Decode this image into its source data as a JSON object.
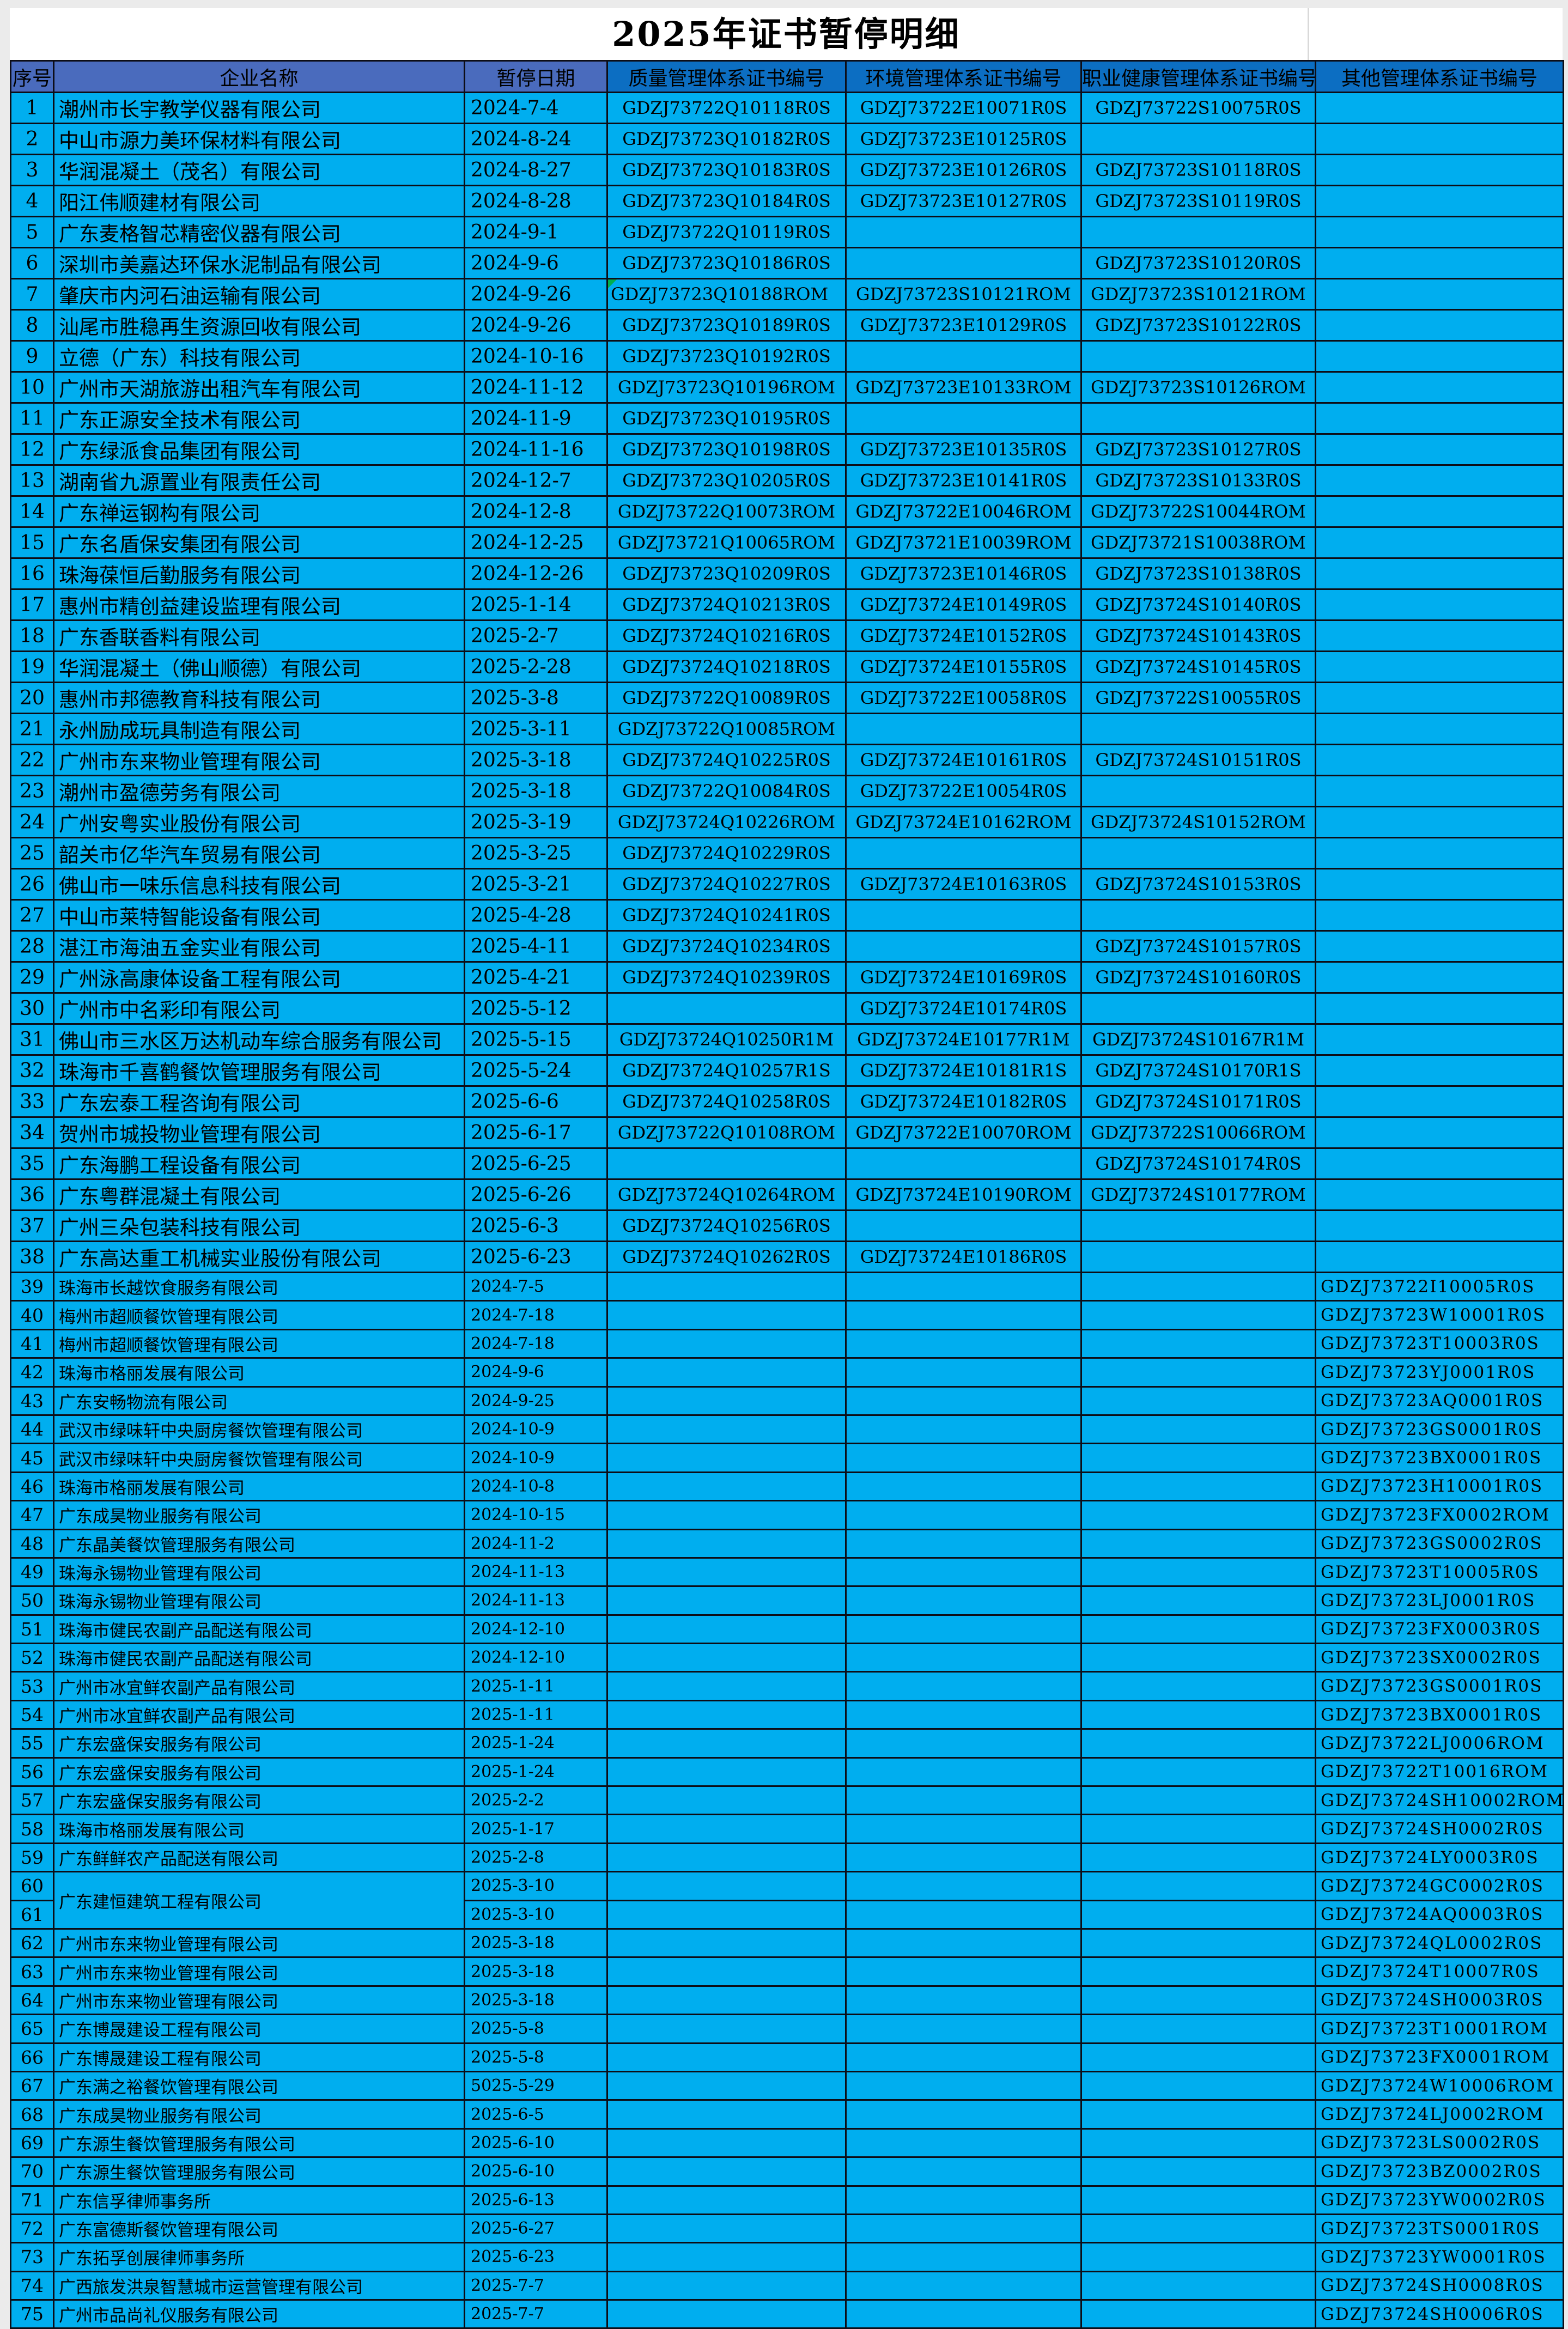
{
  "title": "2025年证书暂停明细",
  "colors": {
    "header_left_blue": "#4a6bbd",
    "header_right_blue": "#0c6ec2",
    "cell_cyan": "#00aeef",
    "grid_border": "#0d0d16",
    "error_marker_green": "#00b050"
  },
  "table": {
    "headers": {
      "serial": "序号",
      "company": "企业名称",
      "date": "暂停日期",
      "quality": "质量管理体系证书编号",
      "env": "环境管理体系证书编号",
      "health": "职业健康管理体系证书编号",
      "other": "其他管理体系证书编号"
    },
    "small_rows_from": 39,
    "rows": [
      {
        "n": "1",
        "company": "潮州市长宇教学仪器有限公司",
        "date": "2024-7-4",
        "q": "GDZJ73722Q10118R0S",
        "e": "GDZJ73722E10071R0S",
        "h": "GDZJ73722S10075R0S",
        "o": ""
      },
      {
        "n": "2",
        "company": "中山市源力美环保材料有限公司",
        "date": "2024-8-24",
        "q": "GDZJ73723Q10182R0S",
        "e": "GDZJ73723E10125R0S",
        "h": "",
        "o": ""
      },
      {
        "n": "3",
        "company": "华润混凝土（茂名）有限公司",
        "date": "2024-8-27",
        "q": "GDZJ73723Q10183R0S",
        "e": "GDZJ73723E10126R0S",
        "h": "GDZJ73723S10118R0S",
        "o": ""
      },
      {
        "n": "4",
        "company": "阳江伟顺建材有限公司",
        "date": "2024-8-28",
        "q": "GDZJ73723Q10184R0S",
        "e": "GDZJ73723E10127R0S",
        "h": "GDZJ73723S10119R0S",
        "o": ""
      },
      {
        "n": "5",
        "company": "广东麦格智芯精密仪器有限公司",
        "date": "2024-9-1",
        "q": "GDZJ73722Q10119R0S",
        "e": "",
        "h": "",
        "o": ""
      },
      {
        "n": "6",
        "company": "深圳市美嘉达环保水泥制品有限公司",
        "date": "2024-9-6",
        "q": "GDZJ73723Q10186R0S",
        "e": "",
        "h": "GDZJ73723S10120R0S",
        "o": ""
      },
      {
        "n": "7",
        "company": "肇庆市内河石油运输有限公司",
        "date": "2024-9-26",
        "q": "GDZJ73723Q10188ROM",
        "e": "GDZJ73723S10121ROM",
        "h": "GDZJ73723S10121ROM",
        "o": "",
        "q_left": true,
        "q_marker": true
      },
      {
        "n": "8",
        "company": "汕尾市胜稳再生资源回收有限公司",
        "date": "2024-9-26",
        "q": "GDZJ73723Q10189R0S",
        "e": "GDZJ73723E10129R0S",
        "h": "GDZJ73723S10122R0S",
        "o": ""
      },
      {
        "n": "9",
        "company": "立德（广东）科技有限公司",
        "date": "2024-10-16",
        "q": "GDZJ73723Q10192R0S",
        "e": "",
        "h": "",
        "o": ""
      },
      {
        "n": "10",
        "company": "广州市天湖旅游出租汽车有限公司",
        "date": "2024-11-12",
        "q": "GDZJ73723Q10196ROM",
        "e": "GDZJ73723E10133ROM",
        "h": "GDZJ73723S10126ROM",
        "o": ""
      },
      {
        "n": "11",
        "company": "广东正源安全技术有限公司",
        "date": "2024-11-9",
        "q": "GDZJ73723Q10195R0S",
        "e": "",
        "h": "",
        "o": ""
      },
      {
        "n": "12",
        "company": "广东绿派食品集团有限公司",
        "date": "2024-11-16",
        "q": "GDZJ73723Q10198R0S",
        "e": "GDZJ73723E10135R0S",
        "h": "GDZJ73723S10127R0S",
        "o": ""
      },
      {
        "n": "13",
        "company": "湖南省九源置业有限责任公司",
        "date": "2024-12-7",
        "q": "GDZJ73723Q10205R0S",
        "e": "GDZJ73723E10141R0S",
        "h": "GDZJ73723S10133R0S",
        "o": ""
      },
      {
        "n": "14",
        "company": "广东禅运钢构有限公司",
        "date": "2024-12-8",
        "q": "GDZJ73722Q10073ROM",
        "e": "GDZJ73722E10046ROM",
        "h": "GDZJ73722S10044ROM",
        "o": ""
      },
      {
        "n": "15",
        "company": "广东名盾保安集团有限公司",
        "date": "2024-12-25",
        "q": "GDZJ73721Q10065ROM",
        "e": "GDZJ73721E10039ROM",
        "h": "GDZJ73721S10038ROM",
        "o": ""
      },
      {
        "n": "16",
        "company": "珠海葆恒后勤服务有限公司",
        "date": "2024-12-26",
        "q": "GDZJ73723Q10209R0S",
        "e": "GDZJ73723E10146R0S",
        "h": "GDZJ73723S10138R0S",
        "o": ""
      },
      {
        "n": "17",
        "company": "惠州市精创益建设监理有限公司",
        "date": "2025-1-14",
        "q": "GDZJ73724Q10213R0S",
        "e": "GDZJ73724E10149R0S",
        "h": "GDZJ73724S10140R0S",
        "o": ""
      },
      {
        "n": "18",
        "company": "广东香联香料有限公司",
        "date": "2025-2-7",
        "q": "GDZJ73724Q10216R0S",
        "e": "GDZJ73724E10152R0S",
        "h": "GDZJ73724S10143R0S",
        "o": ""
      },
      {
        "n": "19",
        "company": "华润混凝土（佛山顺德）有限公司",
        "date": "2025-2-28",
        "q": "GDZJ73724Q10218R0S",
        "e": "GDZJ73724E10155R0S",
        "h": "GDZJ73724S10145R0S",
        "o": ""
      },
      {
        "n": "20",
        "company": "惠州市邦德教育科技有限公司",
        "date": "2025-3-8",
        "q": "GDZJ73722Q10089R0S",
        "e": "GDZJ73722E10058R0S",
        "h": "GDZJ73722S10055R0S",
        "o": ""
      },
      {
        "n": "21",
        "company": "永州励成玩具制造有限公司",
        "date": "2025-3-11",
        "q": "GDZJ73722Q10085ROM",
        "e": "",
        "h": "",
        "o": ""
      },
      {
        "n": "22",
        "company": "广州市东来物业管理有限公司",
        "date": "2025-3-18",
        "q": "GDZJ73724Q10225R0S",
        "e": "GDZJ73724E10161R0S",
        "h": "GDZJ73724S10151R0S",
        "o": ""
      },
      {
        "n": "23",
        "company": "潮州市盈德劳务有限公司",
        "date": "2025-3-18",
        "q": "GDZJ73722Q10084R0S",
        "e": "GDZJ73722E10054R0S",
        "h": "",
        "o": ""
      },
      {
        "n": "24",
        "company": "广州安粤实业股份有限公司",
        "date": "2025-3-19",
        "q": "GDZJ73724Q10226ROM",
        "e": "GDZJ73724E10162ROM",
        "h": "GDZJ73724S10152ROM",
        "o": ""
      },
      {
        "n": "25",
        "company": "韶关市亿华汽车贸易有限公司",
        "date": "2025-3-25",
        "q": "GDZJ73724Q10229R0S",
        "e": "",
        "h": "",
        "o": ""
      },
      {
        "n": "26",
        "company": "佛山市一味乐信息科技有限公司",
        "date": "2025-3-21",
        "q": "GDZJ73724Q10227R0S",
        "e": "GDZJ73724E10163R0S",
        "h": "GDZJ73724S10153R0S",
        "o": ""
      },
      {
        "n": "27",
        "company": "中山市莱特智能设备有限公司",
        "date": "2025-4-28",
        "q": "GDZJ73724Q10241R0S",
        "e": "",
        "h": "",
        "o": ""
      },
      {
        "n": "28",
        "company": "湛江市海油五金实业有限公司",
        "date": "2025-4-11",
        "q": "GDZJ73724Q10234R0S",
        "e": "",
        "h": "GDZJ73724S10157R0S",
        "o": ""
      },
      {
        "n": "29",
        "company": "广州泳高康体设备工程有限公司",
        "date": "2025-4-21",
        "q": "GDZJ73724Q10239R0S",
        "e": "GDZJ73724E10169R0S",
        "h": "GDZJ73724S10160R0S",
        "o": ""
      },
      {
        "n": "30",
        "company": "广州市中名彩印有限公司",
        "date": "2025-5-12",
        "q": "",
        "e": "GDZJ73724E10174R0S",
        "h": "",
        "o": ""
      },
      {
        "n": "31",
        "company": "佛山市三水区万达机动车综合服务有限公司",
        "date": "2025-5-15",
        "q": "GDZJ73724Q10250R1M",
        "e": "GDZJ73724E10177R1M",
        "h": "GDZJ73724S10167R1M",
        "o": ""
      },
      {
        "n": "32",
        "company": "珠海市千喜鹤餐饮管理服务有限公司",
        "date": "2025-5-24",
        "q": "GDZJ73724Q10257R1S",
        "e": "GDZJ73724E10181R1S",
        "h": "GDZJ73724S10170R1S",
        "o": ""
      },
      {
        "n": "33",
        "company": "广东宏泰工程咨询有限公司",
        "date": "2025-6-6",
        "q": "GDZJ73724Q10258R0S",
        "e": "GDZJ73724E10182R0S",
        "h": "GDZJ73724S10171R0S",
        "o": ""
      },
      {
        "n": "34",
        "company": "贺州市城投物业管理有限公司",
        "date": "2025-6-17",
        "q": "GDZJ73722Q10108ROM",
        "e": "GDZJ73722E10070ROM",
        "h": "GDZJ73722S10066ROM",
        "o": ""
      },
      {
        "n": "35",
        "company": "广东海鹏工程设备有限公司",
        "date": "2025-6-25",
        "q": "",
        "e": "",
        "h": "GDZJ73724S10174R0S",
        "o": ""
      },
      {
        "n": "36",
        "company": "广东粤群混凝土有限公司",
        "date": "2025-6-26",
        "q": "GDZJ73724Q10264ROM",
        "e": "GDZJ73724E10190ROM",
        "h": "GDZJ73724S10177ROM",
        "o": ""
      },
      {
        "n": "37",
        "company": "广州三朵包装科技有限公司",
        "date": "2025-6-3",
        "q": "GDZJ73724Q10256R0S",
        "e": "",
        "h": "",
        "o": ""
      },
      {
        "n": "38",
        "company": "广东高达重工机械实业股份有限公司",
        "date": "2025-6-23",
        "q": "GDZJ73724Q10262R0S",
        "e": "GDZJ73724E10186R0S",
        "h": "",
        "o": ""
      },
      {
        "n": "39",
        "company": "珠海市长越饮食服务有限公司",
        "date": "2024-7-5",
        "q": "",
        "e": "",
        "h": "",
        "o": "GDZJ73722I10005R0S"
      },
      {
        "n": "40",
        "company": "梅州市超顺餐饮管理有限公司",
        "date": "2024-7-18",
        "q": "",
        "e": "",
        "h": "",
        "o": "GDZJ73723W10001R0S"
      },
      {
        "n": "41",
        "company": "梅州市超顺餐饮管理有限公司",
        "date": "2024-7-18",
        "q": "",
        "e": "",
        "h": "",
        "o": "GDZJ73723T10003R0S"
      },
      {
        "n": "42",
        "company": "珠海市格丽发展有限公司",
        "date": "2024-9-6",
        "q": "",
        "e": "",
        "h": "",
        "o": "GDZJ73723YJ0001R0S"
      },
      {
        "n": "43",
        "company": "广东安畅物流有限公司",
        "date": "2024-9-25",
        "q": "",
        "e": "",
        "h": "",
        "o": "GDZJ73723AQ0001R0S"
      },
      {
        "n": "44",
        "company": "武汉市绿味轩中央厨房餐饮管理有限公司",
        "date": "2024-10-9",
        "q": "",
        "e": "",
        "h": "",
        "o": "GDZJ73723GS0001R0S"
      },
      {
        "n": "45",
        "company": "武汉市绿味轩中央厨房餐饮管理有限公司",
        "date": "2024-10-9",
        "q": "",
        "e": "",
        "h": "",
        "o": "GDZJ73723BX0001R0S"
      },
      {
        "n": "46",
        "company": "珠海市格丽发展有限公司",
        "date": "2024-10-8",
        "q": "",
        "e": "",
        "h": "",
        "o": "GDZJ73723H10001R0S"
      },
      {
        "n": "47",
        "company": "广东成昊物业服务有限公司",
        "date": "2024-10-15",
        "q": "",
        "e": "",
        "h": "",
        "o": "GDZJ73723FX0002ROM"
      },
      {
        "n": "48",
        "company": "广东晶美餐饮管理服务有限公司",
        "date": "2024-11-2",
        "q": "",
        "e": "",
        "h": "",
        "o": "GDZJ73723GS0002R0S"
      },
      {
        "n": "49",
        "company": "珠海永锡物业管理有限公司",
        "date": "2024-11-13",
        "q": "",
        "e": "",
        "h": "",
        "o": "GDZJ73723T10005R0S"
      },
      {
        "n": "50",
        "company": "珠海永锡物业管理有限公司",
        "date": "2024-11-13",
        "q": "",
        "e": "",
        "h": "",
        "o": "GDZJ73723LJ0001R0S"
      },
      {
        "n": "51",
        "company": "珠海市健民农副产品配送有限公司",
        "date": "2024-12-10",
        "q": "",
        "e": "",
        "h": "",
        "o": "GDZJ73723FX0003R0S"
      },
      {
        "n": "52",
        "company": "珠海市健民农副产品配送有限公司",
        "date": "2024-12-10",
        "q": "",
        "e": "",
        "h": "",
        "o": "GDZJ73723SX0002R0S"
      },
      {
        "n": "53",
        "company": "广州市冰宜鲜农副产品有限公司",
        "date": "2025-1-11",
        "q": "",
        "e": "",
        "h": "",
        "o": "GDZJ73723GS0001R0S"
      },
      {
        "n": "54",
        "company": "广州市冰宜鲜农副产品有限公司",
        "date": "2025-1-11",
        "q": "",
        "e": "",
        "h": "",
        "o": "GDZJ73723BX0001R0S"
      },
      {
        "n": "55",
        "company": "广东宏盛保安服务有限公司",
        "date": "2025-1-24",
        "q": "",
        "e": "",
        "h": "",
        "o": "GDZJ73722LJ0006ROM"
      },
      {
        "n": "56",
        "company": "广东宏盛保安服务有限公司",
        "date": "2025-1-24",
        "q": "",
        "e": "",
        "h": "",
        "o": "GDZJ73722T10016ROM"
      },
      {
        "n": "57",
        "company": "广东宏盛保安服务有限公司",
        "date": "2025-2-2",
        "q": "",
        "e": "",
        "h": "",
        "o": "GDZJ73724SH10002ROM"
      },
      {
        "n": "58",
        "company": "珠海市格丽发展有限公司",
        "date": "2025-1-17",
        "q": "",
        "e": "",
        "h": "",
        "o": "GDZJ73724SH0002R0S"
      },
      {
        "n": "59",
        "company": "广东鲜鲜农产品配送有限公司",
        "date": "2025-2-8",
        "q": "",
        "e": "",
        "h": "",
        "o": "GDZJ73724LY0003R0S"
      },
      {
        "n": "60",
        "company": "广东建恒建筑工程有限公司",
        "date": "2025-3-10",
        "q": "",
        "e": "",
        "h": "",
        "o": "GDZJ73724GC0002R0S",
        "company_rowspan": 2
      },
      {
        "n": "61",
        "company": "",
        "date": "2025-3-10",
        "q": "",
        "e": "",
        "h": "",
        "o": "GDZJ73724AQ0003R0S",
        "company_rowspan": 0
      },
      {
        "n": "62",
        "company": "广州市东来物业管理有限公司",
        "date": "2025-3-18",
        "q": "",
        "e": "",
        "h": "",
        "o": "GDZJ73724QL0002R0S"
      },
      {
        "n": "63",
        "company": "广州市东来物业管理有限公司",
        "date": "2025-3-18",
        "q": "",
        "e": "",
        "h": "",
        "o": "GDZJ73724T10007R0S"
      },
      {
        "n": "64",
        "company": "广州市东来物业管理有限公司",
        "date": "2025-3-18",
        "q": "",
        "e": "",
        "h": "",
        "o": "GDZJ73724SH0003R0S"
      },
      {
        "n": "65",
        "company": "广东博晟建设工程有限公司",
        "date": "2025-5-8",
        "q": "",
        "e": "",
        "h": "",
        "o": "GDZJ73723T10001ROM"
      },
      {
        "n": "66",
        "company": "广东博晟建设工程有限公司",
        "date": "2025-5-8",
        "q": "",
        "e": "",
        "h": "",
        "o": "GDZJ73723FX0001ROM"
      },
      {
        "n": "67",
        "company": "广东满之裕餐饮管理有限公司",
        "date": "5025-5-29",
        "q": "",
        "e": "",
        "h": "",
        "o": "GDZJ73724W10006ROM"
      },
      {
        "n": "68",
        "company": "广东成昊物业服务有限公司",
        "date": "2025-6-5",
        "q": "",
        "e": "",
        "h": "",
        "o": "GDZJ73724LJ0002ROM"
      },
      {
        "n": "69",
        "company": "广东源生餐饮管理服务有限公司",
        "date": "2025-6-10",
        "q": "",
        "e": "",
        "h": "",
        "o": "GDZJ73723LS0002R0S"
      },
      {
        "n": "70",
        "company": "广东源生餐饮管理服务有限公司",
        "date": "2025-6-10",
        "q": "",
        "e": "",
        "h": "",
        "o": "GDZJ73723BZ0002R0S"
      },
      {
        "n": "71",
        "company": "广东信孚律师事务所",
        "date": "2025-6-13",
        "q": "",
        "e": "",
        "h": "",
        "o": "GDZJ73723YW0002R0S"
      },
      {
        "n": "72",
        "company": "广东富德斯餐饮管理有限公司",
        "date": "2025-6-27",
        "q": "",
        "e": "",
        "h": "",
        "o": "GDZJ73723TS0001R0S"
      },
      {
        "n": "73",
        "company": "广东拓孚创展律师事务所",
        "date": "2025-6-23",
        "q": "",
        "e": "",
        "h": "",
        "o": "GDZJ73723YW0001R0S"
      },
      {
        "n": "74",
        "company": "广西旅发洪泉智慧城市运营管理有限公司",
        "date": "2025-7-7",
        "q": "",
        "e": "",
        "h": "",
        "o": "GDZJ73724SH0008R0S"
      },
      {
        "n": "75",
        "company": "广州市品尚礼仪服务有限公司",
        "date": "2025-7-7",
        "q": "",
        "e": "",
        "h": "",
        "o": "GDZJ73724SH0006R0S"
      }
    ]
  }
}
